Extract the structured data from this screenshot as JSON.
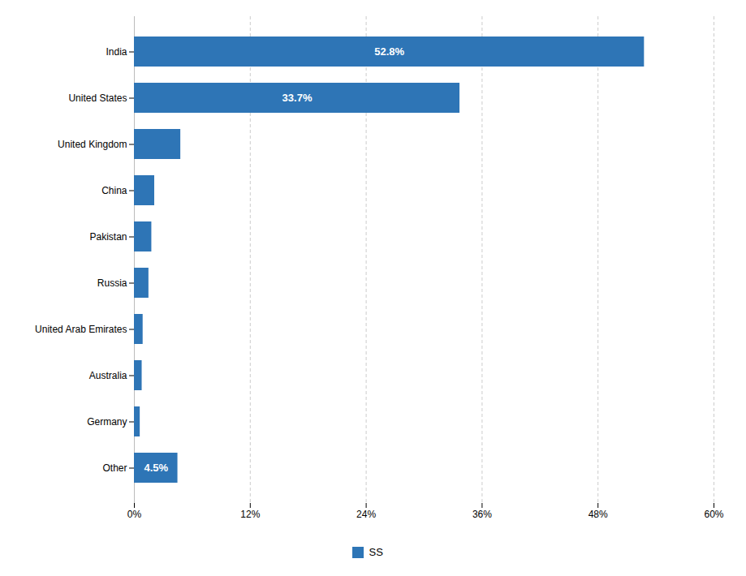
{
  "chart_data": {
    "type": "bar",
    "orientation": "horizontal",
    "categories": [
      "India",
      "United States",
      "United Kingdom",
      "China",
      "Pakistan",
      "Russia",
      "United Arab Emirates",
      "Australia",
      "Germany",
      "Other"
    ],
    "series": [
      {
        "name": "SS",
        "color": "#2E75B6",
        "values": [
          52.8,
          33.7,
          4.8,
          2.1,
          1.8,
          1.5,
          0.9,
          0.8,
          0.6,
          4.5
        ]
      }
    ],
    "data_labels": true,
    "value_labels": [
      "52.8%",
      "33.7%",
      null,
      null,
      null,
      null,
      null,
      null,
      null,
      "4.5%"
    ],
    "xlim": [
      0,
      60
    ],
    "xticks": [
      {
        "value": 0,
        "label": "0%"
      },
      {
        "value": 12,
        "label": "12%"
      },
      {
        "value": 24,
        "label": "24%"
      },
      {
        "value": 36,
        "label": "36%"
      },
      {
        "value": 48,
        "label": "48%"
      },
      {
        "value": 60,
        "label": "60%"
      }
    ],
    "grid": true,
    "legend": "bottom"
  }
}
